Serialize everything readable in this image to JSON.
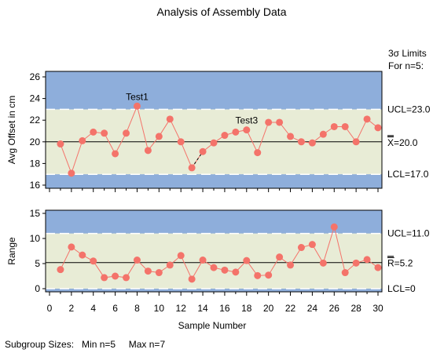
{
  "title": "Analysis of Assembly Data",
  "limits_header": [
    "3σ Limits",
    "For n=5:"
  ],
  "x_axis_label": "Sample Number",
  "footer": "Subgroup Sizes:   Min n=5     Max n=7",
  "colors": {
    "out_zone": "#8eaedb",
    "in_zone": "#e8ecd6",
    "marker": "#f4736a",
    "line": "#f4736a"
  },
  "chart_data": [
    {
      "type": "line",
      "name": "means",
      "ylabel": "Avg Offset in cm",
      "xlim": [
        0,
        30
      ],
      "ylim": [
        16,
        26
      ],
      "yticks": [
        16,
        18,
        20,
        22,
        24,
        26
      ],
      "x": [
        1,
        2,
        3,
        4,
        5,
        6,
        7,
        8,
        9,
        10,
        11,
        12,
        13,
        14,
        15,
        16,
        17,
        18,
        19,
        20,
        21,
        22,
        23,
        24,
        25,
        26,
        27,
        28,
        29,
        30
      ],
      "values": [
        19.8,
        17.1,
        20.1,
        20.9,
        20.8,
        18.9,
        20.8,
        23.3,
        19.2,
        20.5,
        22.1,
        20.0,
        17.6,
        19.1,
        19.9,
        20.6,
        20.9,
        21.1,
        19.0,
        21.8,
        21.8,
        20.5,
        20.0,
        19.9,
        20.7,
        21.4,
        21.4,
        20.0,
        22.1,
        21.3
      ],
      "ucl": 23.0,
      "center": 20.0,
      "lcl": 17.0,
      "ucl_label": "UCL=23.0",
      "center_label_symbol": "X",
      "center_label_value": "=20.0",
      "lcl_label": "LCL=17.0",
      "annotations": [
        {
          "text": "Test1",
          "x": 8,
          "y": 23.3
        },
        {
          "text": "Test3",
          "x": 18,
          "y": 21.1
        }
      ],
      "dashed_segments": [
        [
          13,
          17.6,
          14,
          19.1
        ]
      ]
    },
    {
      "type": "line",
      "name": "ranges",
      "ylabel": "Range",
      "xlim": [
        0,
        30
      ],
      "ylim": [
        0,
        15
      ],
      "yticks": [
        0,
        5,
        10,
        15
      ],
      "x": [
        1,
        2,
        3,
        4,
        5,
        6,
        7,
        8,
        9,
        10,
        11,
        12,
        13,
        14,
        15,
        16,
        17,
        18,
        19,
        20,
        21,
        22,
        23,
        24,
        25,
        26,
        27,
        28,
        29,
        30
      ],
      "values": [
        3.8,
        8.3,
        6.7,
        5.5,
        2.2,
        2.5,
        2.2,
        5.7,
        3.5,
        3.2,
        4.7,
        6.6,
        1.9,
        5.7,
        4.2,
        3.7,
        3.3,
        5.6,
        2.6,
        2.7,
        6.3,
        4.7,
        8.2,
        8.8,
        5.1,
        12.3,
        3.2,
        5.1,
        5.8,
        4.2
      ],
      "ucl": 11.0,
      "center": 5.2,
      "lcl": 0,
      "ucl_label": "UCL=11.0",
      "center_label_symbol": "R",
      "center_label_value": "=5.2",
      "lcl_label": "LCL=0"
    }
  ],
  "x_ticks": [
    0,
    2,
    4,
    6,
    8,
    10,
    12,
    14,
    16,
    18,
    20,
    22,
    24,
    26,
    28,
    30
  ]
}
